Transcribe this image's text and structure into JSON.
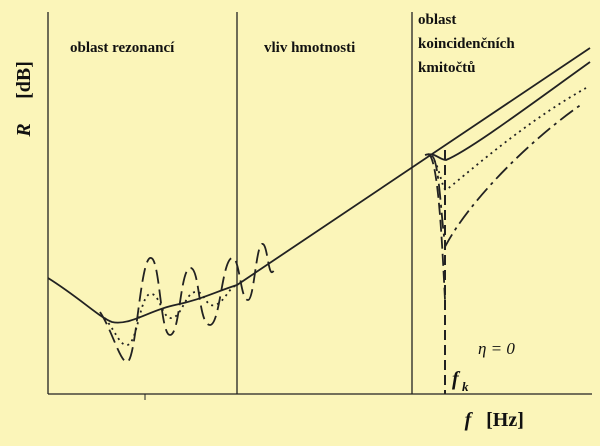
{
  "axes": {
    "y_label": "R",
    "y_unit": "[dB]",
    "x_label": "f",
    "x_unit": "[Hz]"
  },
  "regions": [
    {
      "label": "oblast rezonancí"
    },
    {
      "label": "vliv hmotnosti"
    },
    {
      "label_lines": [
        "oblast",
        "koincidenčních",
        "kmitočtů"
      ]
    }
  ],
  "annotations": {
    "eta": "η = 0",
    "fk": "f",
    "fk_sub": "k"
  }
}
